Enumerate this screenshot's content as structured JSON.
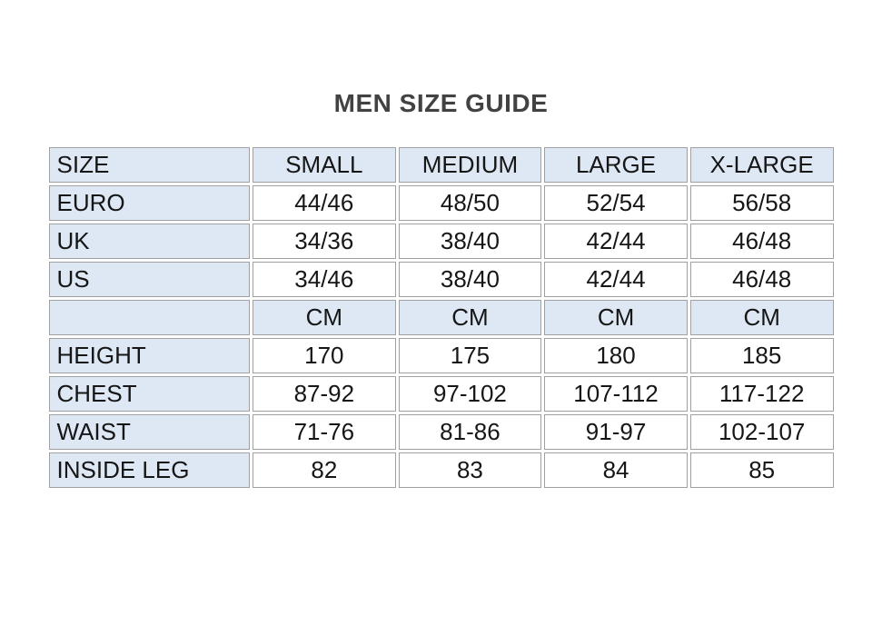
{
  "title": "MEN SIZE GUIDE",
  "colors": {
    "shaded_cell_bg": "#dde8f4",
    "cell_border": "#a0a0a0",
    "title_text": "#424242",
    "table_text": "#161616",
    "page_bg": "#ffffff"
  },
  "table": {
    "columns": [
      "SIZE",
      "SMALL",
      "MEDIUM",
      "LARGE",
      "X-LARGE"
    ],
    "rows": [
      {
        "label": "EURO",
        "values": [
          "44/46",
          "48/50",
          "52/54",
          "56/58"
        ],
        "row_shaded": false
      },
      {
        "label": "UK",
        "values": [
          "34/36",
          "38/40",
          "42/44",
          "46/48"
        ],
        "row_shaded": false
      },
      {
        "label": "US",
        "values": [
          "34/46",
          "38/40",
          "42/44",
          "46/48"
        ],
        "row_shaded": false
      },
      {
        "label": "",
        "values": [
          "CM",
          "CM",
          "CM",
          "CM"
        ],
        "row_shaded": true
      },
      {
        "label": "HEIGHT",
        "values": [
          "170",
          "175",
          "180",
          "185"
        ],
        "row_shaded": false
      },
      {
        "label": "CHEST",
        "values": [
          "87-92",
          "97-102",
          "107-112",
          "117-122"
        ],
        "row_shaded": false
      },
      {
        "label": "WAIST",
        "values": [
          "71-76",
          "81-86",
          "91-97",
          "102-107"
        ],
        "row_shaded": false
      },
      {
        "label": "INSIDE LEG",
        "values": [
          "82",
          "83",
          "84",
          "85"
        ],
        "row_shaded": false
      }
    ]
  }
}
